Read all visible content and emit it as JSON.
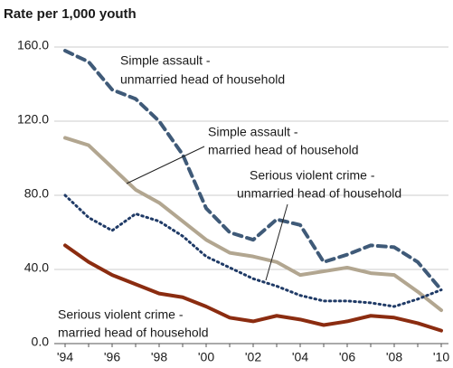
{
  "chart_data": {
    "type": "line",
    "title": "Rate per 1,000 youth",
    "categories": [
      "'94",
      null,
      "'96",
      null,
      "'98",
      null,
      "'00",
      null,
      "'02",
      null,
      "'04",
      null,
      "'06",
      null,
      "'08",
      null,
      "'10"
    ],
    "ylim": [
      0,
      160
    ],
    "yticks": [
      {
        "value": 0,
        "label": "0.0"
      },
      {
        "value": 40,
        "label": "40.0"
      },
      {
        "value": 80,
        "label": "80.0"
      },
      {
        "value": 120,
        "label": "120.0"
      },
      {
        "value": 160,
        "label": "160.0"
      }
    ],
    "grid": true,
    "series": [
      {
        "name": "Simple assault - unmarried head of household",
        "color": "#3f5a78",
        "dash": "dashed",
        "values": [
          158,
          152,
          137,
          132,
          120,
          102,
          73,
          60,
          56,
          67,
          64,
          44,
          48,
          53,
          52,
          44,
          29
        ]
      },
      {
        "name": "Simple assault - married head of household",
        "color": "#b2a690",
        "dash": "solid",
        "values": [
          111,
          107,
          95,
          83,
          76,
          66,
          56,
          49,
          47,
          44,
          37,
          39,
          41,
          38,
          37,
          28,
          18
        ]
      },
      {
        "name": "Serious violent crime - unmarried head of household",
        "color": "#1f3a66",
        "dash": "dotted",
        "values": [
          80,
          68,
          61,
          70,
          66,
          58,
          47,
          41,
          35,
          31,
          26,
          23,
          23,
          22,
          20,
          24,
          29
        ]
      },
      {
        "name": "Serious violent crime - married head of household",
        "color": "#8b2c10",
        "dash": "solid",
        "values": [
          53,
          44,
          37,
          32,
          27,
          25,
          20,
          14,
          12,
          15,
          13,
          10,
          12,
          15,
          14,
          11,
          7
        ]
      }
    ],
    "annotations": [
      {
        "lines": [
          "Simple assault -",
          "unmarried head of household"
        ]
      },
      {
        "lines": [
          "Simple assault -",
          "married head of household"
        ]
      },
      {
        "lines": [
          "Serious violent crime -",
          "unmarried head of household"
        ]
      },
      {
        "lines": [
          "Serious violent crime -",
          "married head of household"
        ]
      }
    ]
  }
}
